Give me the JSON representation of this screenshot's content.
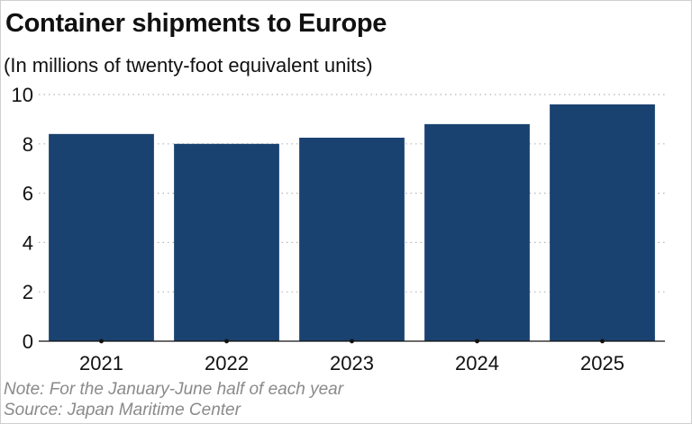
{
  "chart_data": {
    "type": "bar",
    "title": "Container shipments to Europe",
    "subtitle": "(In millions of twenty-foot equivalent units)",
    "categories": [
      "2021",
      "2022",
      "2023",
      "2024",
      "2025"
    ],
    "values": [
      8.4,
      8.0,
      8.25,
      8.8,
      9.6
    ],
    "xlabel": "",
    "ylabel": "",
    "ylim": [
      0,
      10
    ],
    "yticks": [
      "0",
      "2",
      "4",
      "6",
      "8",
      "10"
    ],
    "grid": true,
    "bar_color": "#1a4270"
  },
  "notes": {
    "note": "Note: For the January-June half of each year",
    "source": "Source: Japan Maritime Center"
  }
}
